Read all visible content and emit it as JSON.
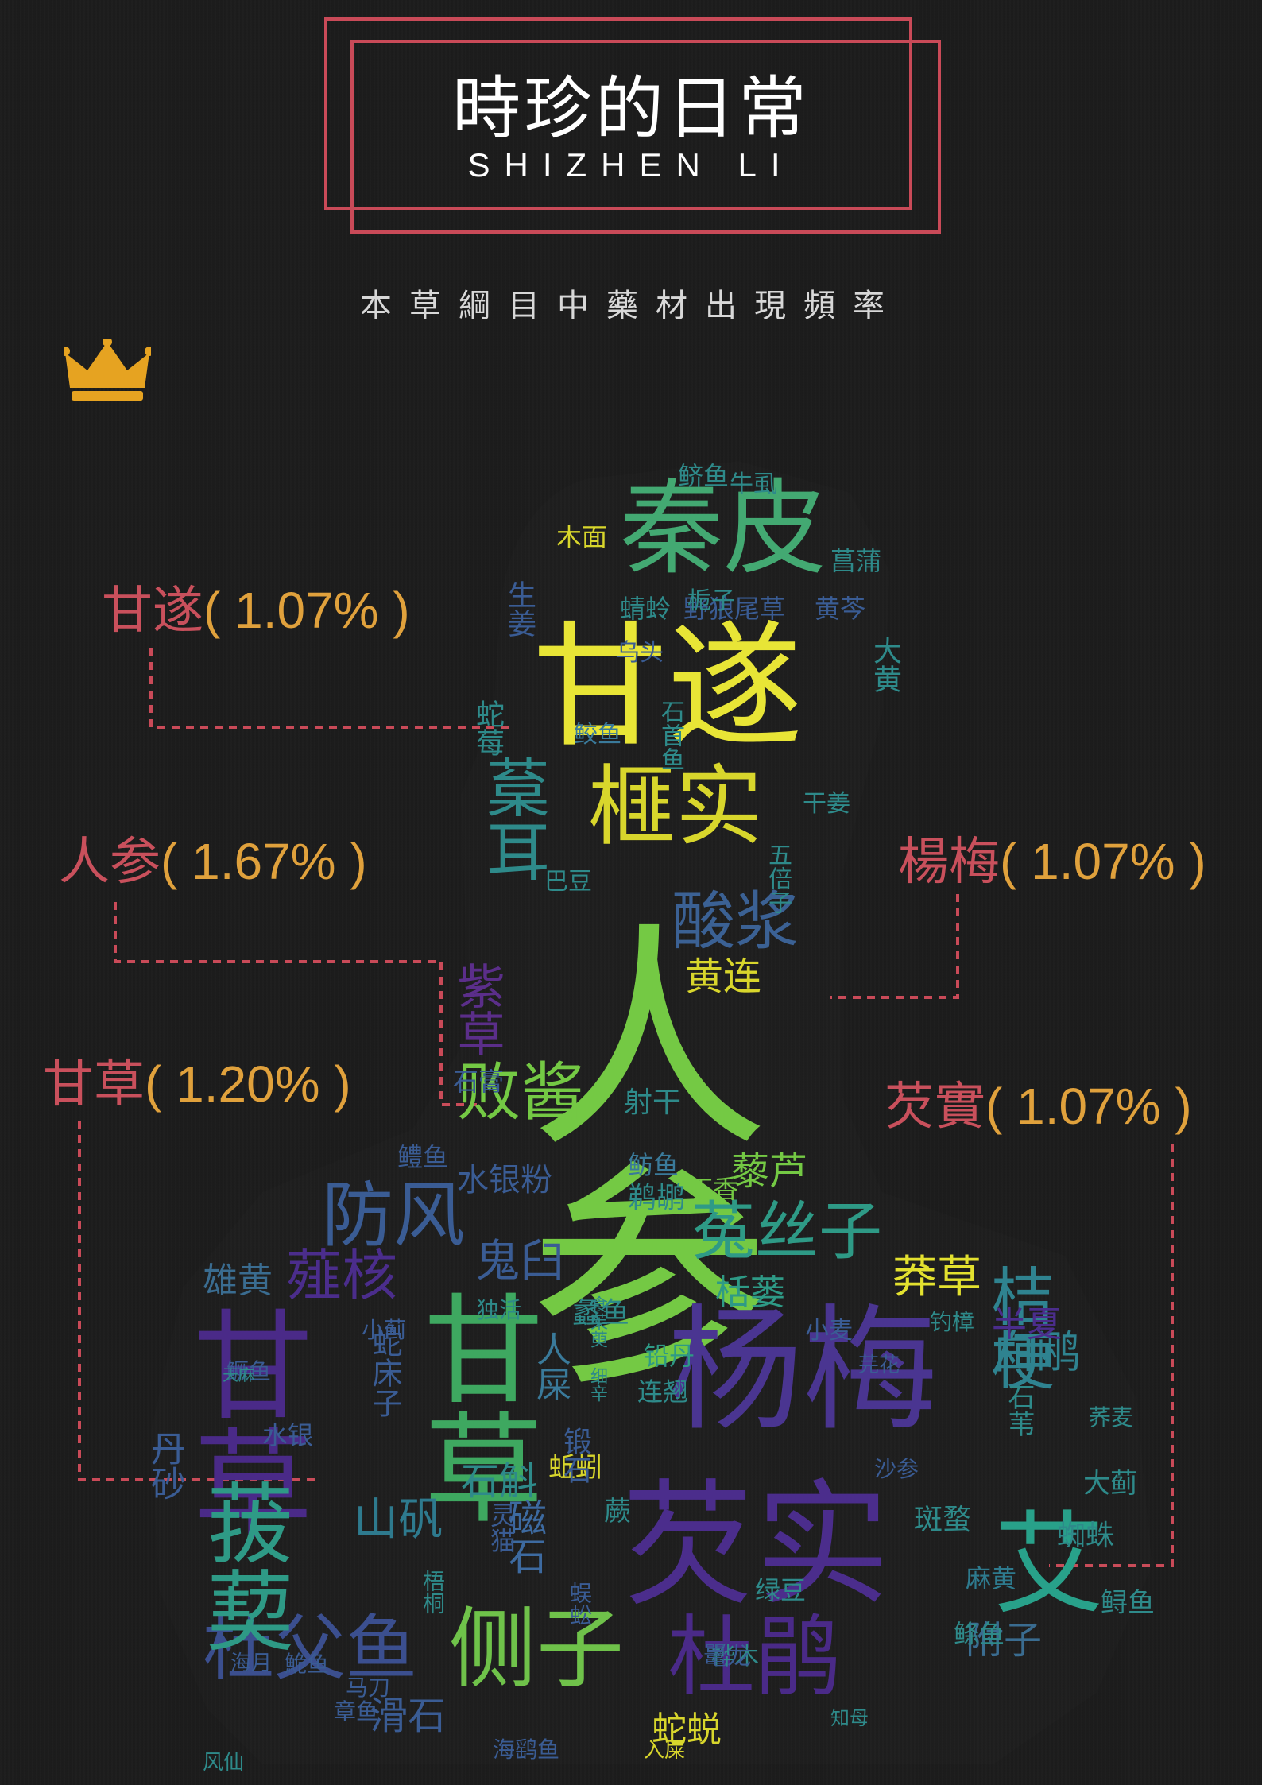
{
  "title": {
    "main": "時珍的日常",
    "english": "SHIZHEN LI"
  },
  "subtitle": "本草綱目中藥材出現頻率",
  "colors": {
    "accent_red": "#c94a58",
    "accent_gold": "#e0a13c",
    "background": "#1c1c1c"
  },
  "icons": {
    "crown": "crown-icon"
  },
  "callouts": [
    {
      "name": "甘遂",
      "percent": "( 1.07% )"
    },
    {
      "name": "人参",
      "percent": "( 1.67% )"
    },
    {
      "name": "楊梅",
      "percent": "( 1.07% )"
    },
    {
      "name": "甘草",
      "percent": "( 1.20% )"
    },
    {
      "name": "芡實",
      "percent": "( 1.07% )"
    }
  ],
  "words": [
    {
      "t": "人参",
      "c": "#74c944",
      "s": 300,
      "v": true
    },
    {
      "t": "甘遂",
      "c": "#e8e536",
      "s": 170
    },
    {
      "t": "秦皮",
      "c": "#43a972",
      "s": 130
    },
    {
      "t": "榧实",
      "c": "#d8d62c",
      "s": 110
    },
    {
      "t": "杨梅",
      "c": "#4a3591",
      "s": 170
    },
    {
      "t": "芡实",
      "c": "#4b2d8c",
      "s": 170
    },
    {
      "t": "甘草",
      "c": "#4a2a88",
      "s": 150,
      "v": true
    },
    {
      "t": "甘草",
      "c": "#3ea860",
      "s": 150,
      "v": true
    },
    {
      "t": "杜父鱼",
      "c": "#3b4f8f",
      "s": 90
    },
    {
      "t": "侧子",
      "c": "#6fc24a",
      "s": 110
    },
    {
      "t": "杜鹃",
      "c": "#4a2a88",
      "s": 110
    },
    {
      "t": "防风",
      "c": "#3a5c94",
      "s": 90
    },
    {
      "t": "菟丝子",
      "c": "#2e9a86",
      "s": 80
    },
    {
      "t": "败酱",
      "c": "#74c944",
      "s": 80
    },
    {
      "t": "酸浆",
      "c": "#3b6194",
      "s": 80
    },
    {
      "t": "桔梗",
      "c": "#2f8390",
      "s": 80,
      "v": true
    },
    {
      "t": "葈耳",
      "c": "#2e8a8a",
      "s": 80,
      "v": true
    },
    {
      "t": "紫草",
      "c": "#5b2e8a",
      "s": 60,
      "v": true
    },
    {
      "t": "菝葜",
      "c": "#2e9a86",
      "s": 110,
      "v": true
    },
    {
      "t": "艾",
      "c": "#28a18a",
      "s": 140
    },
    {
      "t": "薤核",
      "c": "#4b2d8c",
      "s": 70
    },
    {
      "t": "黄连",
      "c": "#d8d62c",
      "s": 48
    },
    {
      "t": "莽草",
      "c": "#e3e12f",
      "s": 56
    },
    {
      "t": "白鹇",
      "c": "#2f8390",
      "s": 56
    },
    {
      "t": "鬼臼",
      "c": "#3a5c94",
      "s": 56
    },
    {
      "t": "藜芦",
      "c": "#74c944",
      "s": 48
    },
    {
      "t": "雄黄",
      "c": "#3a6c90",
      "s": 44
    },
    {
      "t": "山矾",
      "c": "#2e7a8e",
      "s": 56
    },
    {
      "t": "滑石",
      "c": "#3a5c94",
      "s": 48
    },
    {
      "t": "磁石",
      "c": "#3d6aa0",
      "s": 48,
      "v": true
    },
    {
      "t": "附子",
      "c": "#3a6c90",
      "s": 48
    },
    {
      "t": "石斛",
      "c": "#2e8a8a",
      "s": 48
    },
    {
      "t": "半夏",
      "c": "#4b2d8c",
      "s": 44
    },
    {
      "t": "蛇蜕",
      "c": "#d8d62c",
      "s": 44
    },
    {
      "t": "蜘蛛",
      "c": "#2e8a8a",
      "s": 36
    },
    {
      "t": "斑蝥",
      "c": "#2e8a8a",
      "s": 36
    },
    {
      "t": "大蓟",
      "c": "#2e8a8a",
      "s": 34
    },
    {
      "t": "鲟鱼",
      "c": "#2e8a8a",
      "s": 34
    },
    {
      "t": "麻黄",
      "c": "#2e7a8e",
      "s": 32
    },
    {
      "t": "鲦鱼",
      "c": "#2e8a8a",
      "s": 32
    },
    {
      "t": "水银粉",
      "c": "#3a5c94",
      "s": 40
    },
    {
      "t": "鹈鹕",
      "c": "#2e8a8a",
      "s": 36
    },
    {
      "t": "射干",
      "c": "#2e8a8a",
      "s": 36
    },
    {
      "t": "鲂鱼",
      "c": "#3a7a9a",
      "s": 32
    },
    {
      "t": "鳢鱼",
      "c": "#3a5c94",
      "s": 32
    },
    {
      "t": "丁香",
      "c": "#74c944",
      "s": 32
    },
    {
      "t": "栝蒌",
      "c": "#2e9a86",
      "s": 44
    },
    {
      "t": "蠡鱼",
      "c": "#2e8a8a",
      "s": 36
    },
    {
      "t": "木面",
      "c": "#d8d62c",
      "s": 32
    },
    {
      "t": "蜻蛉",
      "c": "#2e8a8a",
      "s": 32
    },
    {
      "t": "野狼尾草",
      "c": "#3a5c94",
      "s": 32
    },
    {
      "t": "黄芩",
      "c": "#3a5c94",
      "s": 32
    },
    {
      "t": "菖蒲",
      "c": "#2e8a8a",
      "s": 32
    },
    {
      "t": "鲚鱼",
      "c": "#2e8a8a",
      "s": 32
    },
    {
      "t": "牛虱",
      "c": "#2e8a8a",
      "s": 30
    },
    {
      "t": "栀子",
      "c": "#2e8a8a",
      "s": 30
    },
    {
      "t": "乌头",
      "c": "#3a5c94",
      "s": 30
    },
    {
      "t": "鲛鱼",
      "c": "#3a7a9a",
      "s": 30
    },
    {
      "t": "干姜",
      "c": "#2e8a8a",
      "s": 30
    },
    {
      "t": "巴豆",
      "c": "#2e8a8a",
      "s": 30
    },
    {
      "t": "石膏",
      "c": "#3a5c94",
      "s": 32
    },
    {
      "t": "铅丹",
      "c": "#2e9a86",
      "s": 32
    },
    {
      "t": "连翘",
      "c": "#2e8a8a",
      "s": 32
    },
    {
      "t": "蚯蚓",
      "c": "#d8d62c",
      "s": 34
    },
    {
      "t": "小麦",
      "c": "#3a5c94",
      "s": 30
    },
    {
      "t": "沙参",
      "c": "#3a5c94",
      "s": 28
    },
    {
      "t": "荞麦",
      "c": "#2e8a8a",
      "s": 28
    },
    {
      "t": "钓樟",
      "c": "#2e8a8a",
      "s": 28
    },
    {
      "t": "绿豆",
      "c": "#2e8a8a",
      "s": 32
    },
    {
      "t": "桦木",
      "c": "#2e8a8a",
      "s": 30
    },
    {
      "t": "鼍龙",
      "c": "#3a5c94",
      "s": 30
    },
    {
      "t": "章鱼",
      "c": "#3a5c94",
      "s": 28
    },
    {
      "t": "马刀",
      "c": "#3a5c94",
      "s": 28
    },
    {
      "t": "风仙",
      "c": "#2e8a8a",
      "s": 26
    },
    {
      "t": "鮠鱼",
      "c": "#3a5c94",
      "s": 28
    },
    {
      "t": "海月",
      "c": "#3a5c94",
      "s": 26
    },
    {
      "t": "独活",
      "c": "#2e8a8a",
      "s": 28
    },
    {
      "t": "小蓟",
      "c": "#3a5c94",
      "s": 28
    },
    {
      "t": "鳜鱼",
      "c": "#3a5c94",
      "s": 28
    },
    {
      "t": "知母",
      "c": "#2e8a8a",
      "s": 24
    },
    {
      "t": "入屎",
      "c": "#d8d62c",
      "s": 26
    },
    {
      "t": "海鹞鱼",
      "c": "#3a5c94",
      "s": 28
    },
    {
      "t": "丹砂",
      "c": "#3a5c94",
      "s": 44,
      "v": true
    },
    {
      "t": "水银",
      "c": "#3a5c94",
      "s": 32
    },
    {
      "t": "蛇莓",
      "c": "#2e8a8a",
      "s": 36,
      "v": true
    },
    {
      "t": "生姜",
      "c": "#3a5c94",
      "s": 36,
      "v": true
    },
    {
      "t": "大黄",
      "c": "#2e8a8a",
      "s": 36,
      "v": true
    },
    {
      "t": "石首鱼",
      "c": "#2e8a8a",
      "s": 30,
      "v": true
    },
    {
      "t": "五倍子",
      "c": "#2e8a8a",
      "s": 30,
      "v": true
    },
    {
      "t": "锻石",
      "c": "#3a5c94",
      "s": 36,
      "v": true
    },
    {
      "t": "灵猫",
      "c": "#3a5c94",
      "s": 32,
      "v": true
    },
    {
      "t": "蜈蚣",
      "c": "#3a5c94",
      "s": 28,
      "v": true
    },
    {
      "t": "梧桐",
      "c": "#2e8a8a",
      "s": 28,
      "v": true
    },
    {
      "t": "蕨",
      "c": "#2e8a8a",
      "s": 34
    },
    {
      "t": "人屎",
      "c": "#3a7a9a",
      "s": 44,
      "v": true
    },
    {
      "t": "蛇床子",
      "c": "#3a5c94",
      "s": 38,
      "v": true
    },
    {
      "t": "芫花",
      "c": "#3a5c94",
      "s": 26
    },
    {
      "t": "石苇",
      "c": "#2e8a8a",
      "s": 34,
      "v": true
    },
    {
      "t": "天麻",
      "c": "#2e8a8a",
      "s": 20
    },
    {
      "t": "细辛",
      "c": "#2e8a8a",
      "s": 22,
      "v": true
    },
    {
      "t": "食茱萸",
      "c": "#2e8a8a",
      "s": 22,
      "v": true
    }
  ]
}
